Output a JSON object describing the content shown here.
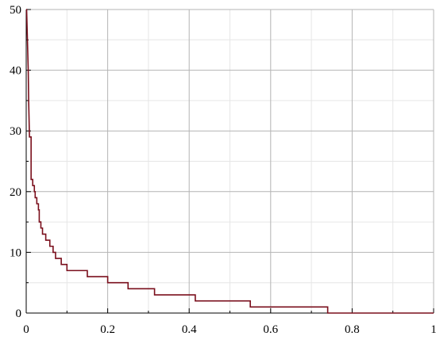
{
  "chart_data": {
    "type": "line",
    "title": "",
    "xlabel": "",
    "ylabel": "",
    "xlim": [
      0,
      1
    ],
    "ylim": [
      0,
      50
    ],
    "x_ticks": [
      {
        "value": 0,
        "label": "0"
      },
      {
        "value": 0.2,
        "label": "0.2"
      },
      {
        "value": 0.4,
        "label": "0.4"
      },
      {
        "value": 0.6,
        "label": "0.6"
      },
      {
        "value": 0.8,
        "label": "0.8"
      },
      {
        "value": 1,
        "label": "1"
      }
    ],
    "y_ticks": [
      {
        "value": 0,
        "label": "0"
      },
      {
        "value": 10,
        "label": "10"
      },
      {
        "value": 20,
        "label": "20"
      },
      {
        "value": 30,
        "label": "30"
      },
      {
        "value": 40,
        "label": "40"
      },
      {
        "value": 50,
        "label": "50"
      }
    ],
    "x_minor_grid": [
      0.1,
      0.3,
      0.5,
      0.7,
      0.9
    ],
    "y_minor_grid": [
      5,
      15,
      25,
      35,
      45
    ],
    "grid": true,
    "line_shape": "step",
    "series": [
      {
        "color": "#7a0f1c",
        "points": [
          [
            0.0,
            50
          ],
          [
            0.001,
            50
          ],
          [
            0.003,
            45
          ],
          [
            0.005,
            40
          ],
          [
            0.006,
            35
          ],
          [
            0.008,
            29
          ],
          [
            0.012,
            29
          ],
          [
            0.012,
            22
          ],
          [
            0.016,
            22
          ],
          [
            0.016,
            21
          ],
          [
            0.02,
            21
          ],
          [
            0.02,
            20
          ],
          [
            0.022,
            20
          ],
          [
            0.022,
            19
          ],
          [
            0.026,
            19
          ],
          [
            0.026,
            18
          ],
          [
            0.03,
            18
          ],
          [
            0.03,
            17
          ],
          [
            0.032,
            17
          ],
          [
            0.032,
            15
          ],
          [
            0.036,
            15
          ],
          [
            0.036,
            14
          ],
          [
            0.04,
            14
          ],
          [
            0.04,
            13
          ],
          [
            0.048,
            13
          ],
          [
            0.048,
            12
          ],
          [
            0.058,
            12
          ],
          [
            0.058,
            11
          ],
          [
            0.066,
            11
          ],
          [
            0.066,
            10
          ],
          [
            0.072,
            10
          ],
          [
            0.072,
            9
          ],
          [
            0.086,
            9
          ],
          [
            0.086,
            8
          ],
          [
            0.1,
            8
          ],
          [
            0.1,
            7
          ],
          [
            0.15,
            7
          ],
          [
            0.15,
            6
          ],
          [
            0.2,
            6
          ],
          [
            0.2,
            5
          ],
          [
            0.25,
            5
          ],
          [
            0.25,
            4
          ],
          [
            0.315,
            4
          ],
          [
            0.315,
            3
          ],
          [
            0.415,
            3
          ],
          [
            0.415,
            2
          ],
          [
            0.55,
            2
          ],
          [
            0.55,
            1
          ],
          [
            0.74,
            1
          ],
          [
            0.74,
            0
          ],
          [
            1.0,
            0
          ]
        ]
      }
    ],
    "colors": {
      "major_grid": "#b4b4b4",
      "minor_grid": "#e6e6e6",
      "axis": "#000000",
      "line": "#7a0f1c"
    }
  }
}
